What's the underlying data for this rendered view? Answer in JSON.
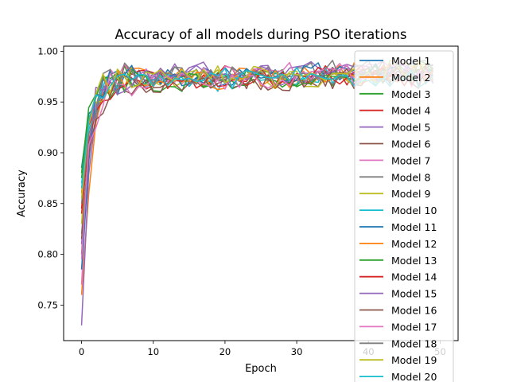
{
  "chart_data": {
    "type": "line",
    "title": "Accuracy of all models during PSO iterations",
    "xlabel": "Epoch",
    "ylabel": "Accuracy",
    "xlim": [
      -2.5,
      52.5
    ],
    "ylim": [
      0.715,
      1.005
    ],
    "xticks": [
      0,
      10,
      20,
      30,
      40,
      50
    ],
    "yticks": [
      0.75,
      0.8,
      0.85,
      0.9,
      0.95,
      1.0
    ],
    "xtick_labels": [
      "0",
      "10",
      "20",
      "30",
      "40",
      "50"
    ],
    "ytick_labels": [
      "0.75",
      "0.80",
      "0.85",
      "0.90",
      "0.95",
      "1.00"
    ],
    "legend_position": "right, overlapping plot area",
    "grid": false,
    "epochs_per_series": 50,
    "series": [
      {
        "name": "Model 1",
        "color": "#1f77b4",
        "start": 0.885
      },
      {
        "name": "Model 2",
        "color": "#ff7f0e",
        "start": 0.76
      },
      {
        "name": "Model 3",
        "color": "#2ca02c",
        "start": 0.88
      },
      {
        "name": "Model 4",
        "color": "#d62728",
        "start": 0.845
      },
      {
        "name": "Model 5",
        "color": "#9467bd",
        "start": 0.73
      },
      {
        "name": "Model 6",
        "color": "#8c564b",
        "start": 0.8
      },
      {
        "name": "Model 7",
        "color": "#e377c2",
        "start": 0.77
      },
      {
        "name": "Model 8",
        "color": "#7f7f7f",
        "start": 0.82
      },
      {
        "name": "Model 9",
        "color": "#bcbd22",
        "start": 0.83
      },
      {
        "name": "Model 10",
        "color": "#17becf",
        "start": 0.87
      },
      {
        "name": "Model 11",
        "color": "#1f77b4",
        "start": 0.785
      },
      {
        "name": "Model 12",
        "color": "#ff7f0e",
        "start": 0.86
      },
      {
        "name": "Model 13",
        "color": "#2ca02c",
        "start": 0.875
      },
      {
        "name": "Model 14",
        "color": "#d62728",
        "start": 0.84
      },
      {
        "name": "Model 15",
        "color": "#9467bd",
        "start": 0.81
      },
      {
        "name": "Model 16",
        "color": "#8c564b",
        "start": 0.815
      },
      {
        "name": "Model 17",
        "color": "#e377c2",
        "start": 0.795
      },
      {
        "name": "Model 18",
        "color": "#7f7f7f",
        "start": 0.85
      },
      {
        "name": "Model 19",
        "color": "#bcbd22",
        "start": 0.855
      },
      {
        "name": "Model 20",
        "color": "#17becf",
        "start": 0.865
      }
    ]
  }
}
